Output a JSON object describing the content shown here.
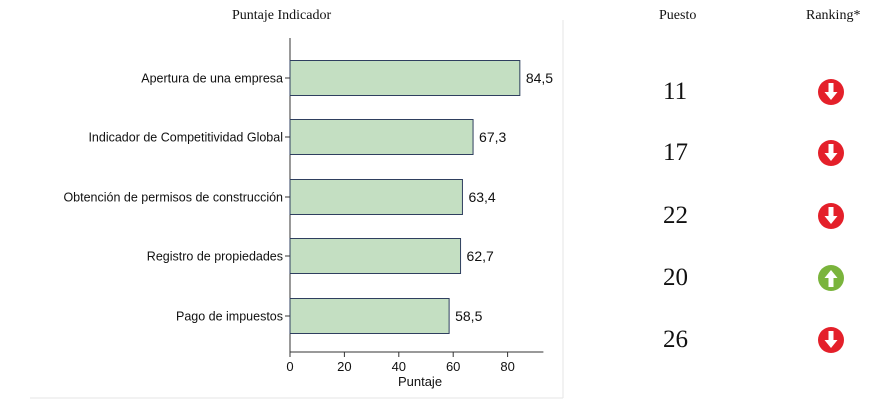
{
  "headers": {
    "score": "Puntaje Indicador",
    "puesto": "Puesto",
    "ranking": "Ranking*"
  },
  "chart_data": {
    "type": "bar",
    "orientation": "horizontal",
    "categories": [
      "Apertura de una empresa",
      "Indicador de Competitividad Global",
      "Obtención de permisos de construcción",
      "Registro de propiedades",
      "Pago de impuestos"
    ],
    "values": [
      84.5,
      67.3,
      63.4,
      62.7,
      58.5
    ],
    "value_labels": [
      "84,5",
      "67,3",
      "63,4",
      "62,7",
      "58,5"
    ],
    "xlabel": "Puntaje",
    "xticks": [
      0,
      20,
      40,
      60,
      80
    ],
    "xlim": [
      0,
      95
    ],
    "bar_color": "#c4dfc2",
    "bar_edge_color": "#2f3f5f"
  },
  "rankings": [
    {
      "puesto": "11",
      "direction": "down",
      "icon": "arrow-down-icon",
      "color": "#e4202a"
    },
    {
      "puesto": "17",
      "direction": "down",
      "icon": "arrow-down-icon",
      "color": "#e4202a"
    },
    {
      "puesto": "22",
      "direction": "down",
      "icon": "arrow-down-icon",
      "color": "#e4202a"
    },
    {
      "puesto": "20",
      "direction": "up",
      "icon": "arrow-up-icon",
      "color": "#7ab43c"
    },
    {
      "puesto": "26",
      "direction": "down",
      "icon": "arrow-down-icon",
      "color": "#e4202a"
    }
  ]
}
